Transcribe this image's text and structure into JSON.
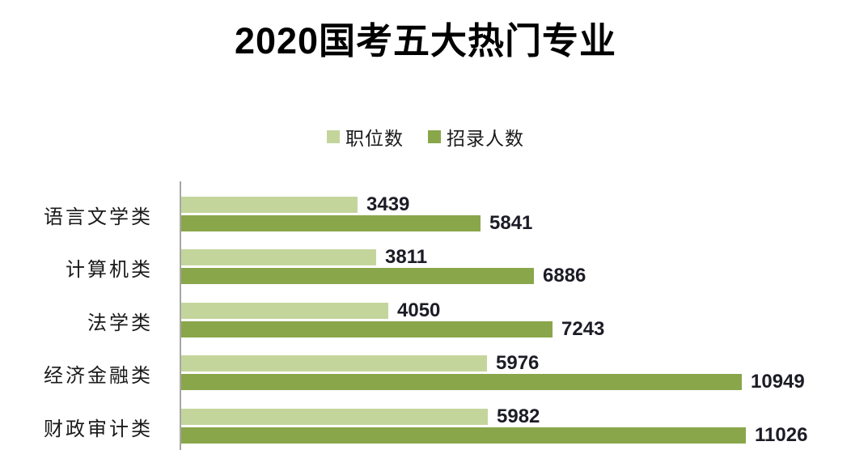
{
  "title": "2020国考五大热门专业",
  "colors": {
    "positions_series": "#c4d59c",
    "recruits_series": "#8aa64a",
    "axis_line": "#a6a6a6",
    "value_label": "#1c1c26",
    "category_label": "#1a1a1a",
    "background": "#ffffff"
  },
  "legend": {
    "items": [
      {
        "label": "职位数"
      },
      {
        "label": "招录人数"
      }
    ]
  },
  "chart_data": {
    "type": "bar",
    "orientation": "horizontal",
    "title": "2020国考五大热门专业",
    "categories": [
      "语言文学类",
      "计算机类",
      "法学类",
      "经济金融类",
      "财政审计类"
    ],
    "series": [
      {
        "name": "职位数",
        "color": "#c4d59c",
        "values": [
          3439,
          3811,
          4050,
          5976,
          5982
        ]
      },
      {
        "name": "招录人数",
        "color": "#8aa64a",
        "values": [
          5841,
          6886,
          7243,
          10949,
          11026
        ]
      }
    ],
    "data_labels": true,
    "legend_position": "top",
    "xlabel": "",
    "ylabel": "",
    "xlim": [
      0,
      12000
    ],
    "grid": false
  }
}
